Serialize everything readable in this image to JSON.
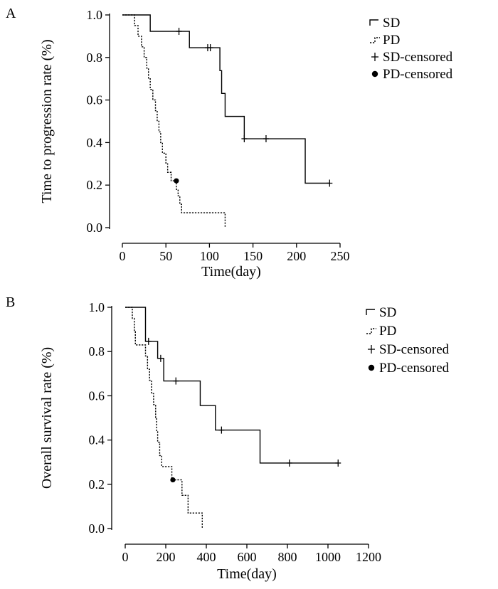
{
  "figure": {
    "chart_data": [
      {
        "type": "line",
        "panel_label": "A",
        "title": "",
        "xlabel": "Time(day)",
        "ylabel": "Time to progression rate (%)",
        "xlim": [
          0,
          250
        ],
        "ylim": [
          0.0,
          1.0
        ],
        "xticks": [
          0,
          50,
          100,
          150,
          200,
          250
        ],
        "yticks": [
          "0.0",
          "0.2",
          "0.4",
          "0.6",
          "0.8",
          "1.0"
        ],
        "legend": {
          "position": "top-right",
          "labels": [
            "SD",
            "PD",
            "SD-censored",
            "PD-censored"
          ]
        },
        "series": [
          {
            "name": "SD",
            "style": "solid-step",
            "steps": [
              [
                0,
                1.0
              ],
              [
                32,
                0.923
              ],
              [
                77,
                0.846
              ],
              [
                112,
                0.738
              ],
              [
                114,
                0.631
              ],
              [
                118,
                0.523
              ],
              [
                140,
                0.418
              ],
              [
                210,
                0.209
              ],
              [
                238,
                0.209
              ]
            ],
            "censored": [
              [
                65,
                0.923
              ],
              [
                98,
                0.846
              ],
              [
                101,
                0.846
              ],
              [
                140,
                0.418
              ],
              [
                165,
                0.418
              ],
              [
                238,
                0.209
              ]
            ]
          },
          {
            "name": "PD",
            "style": "dashed-step",
            "steps": [
              [
                0,
                1.0
              ],
              [
                14,
                0.95
              ],
              [
                18,
                0.9
              ],
              [
                22,
                0.85
              ],
              [
                25,
                0.8
              ],
              [
                28,
                0.75
              ],
              [
                30,
                0.7
              ],
              [
                32,
                0.65
              ],
              [
                35,
                0.6
              ],
              [
                38,
                0.55
              ],
              [
                40,
                0.5
              ],
              [
                42,
                0.45
              ],
              [
                44,
                0.4
              ],
              [
                46,
                0.35
              ],
              [
                50,
                0.3
              ],
              [
                52,
                0.26
              ],
              [
                56,
                0.22
              ],
              [
                62,
                0.18
              ],
              [
                64,
                0.15
              ],
              [
                66,
                0.11
              ],
              [
                68,
                0.07
              ],
              [
                118,
                0.07
              ],
              [
                118,
                0.0
              ]
            ],
            "censored": [
              [
                62,
                0.22
              ]
            ]
          }
        ]
      },
      {
        "type": "line",
        "panel_label": "B",
        "title": "",
        "xlabel": "Time(day)",
        "ylabel": "Overall survival rate (%)",
        "xlim": [
          0,
          1200
        ],
        "ylim": [
          0.0,
          1.0
        ],
        "xticks": [
          0,
          200,
          400,
          600,
          800,
          1000,
          1200
        ],
        "yticks": [
          "0.0",
          "0.2",
          "0.4",
          "0.6",
          "0.8",
          "1.0"
        ],
        "legend": {
          "position": "top-right",
          "labels": [
            "SD",
            "PD",
            "SD-censored",
            "PD-censored"
          ]
        },
        "series": [
          {
            "name": "SD",
            "style": "solid-step",
            "steps": [
              [
                0,
                1.0
              ],
              [
                100,
                0.846
              ],
              [
                160,
                0.769
              ],
              [
                190,
                0.667
              ],
              [
                370,
                0.556
              ],
              [
                445,
                0.445
              ],
              [
                665,
                0.296
              ],
              [
                1050,
                0.296
              ]
            ],
            "censored": [
              [
                115,
                0.846
              ],
              [
                175,
                0.769
              ],
              [
                250,
                0.667
              ],
              [
                475,
                0.445
              ],
              [
                810,
                0.296
              ],
              [
                1050,
                0.296
              ]
            ]
          },
          {
            "name": "PD",
            "style": "dashed-step",
            "steps": [
              [
                0,
                1.0
              ],
              [
                35,
                0.95
              ],
              [
                45,
                0.89
              ],
              [
                50,
                0.83
              ],
              [
                100,
                0.78
              ],
              [
                110,
                0.72
              ],
              [
                120,
                0.67
              ],
              [
                130,
                0.61
              ],
              [
                140,
                0.56
              ],
              [
                150,
                0.5
              ],
              [
                155,
                0.44
              ],
              [
                160,
                0.39
              ],
              [
                170,
                0.33
              ],
              [
                180,
                0.28
              ],
              [
                230,
                0.22
              ],
              [
                280,
                0.15
              ],
              [
                310,
                0.07
              ],
              [
                360,
                0.07
              ],
              [
                380,
                0.0
              ]
            ],
            "censored": [
              [
                235,
                0.22
              ]
            ]
          }
        ]
      }
    ]
  }
}
